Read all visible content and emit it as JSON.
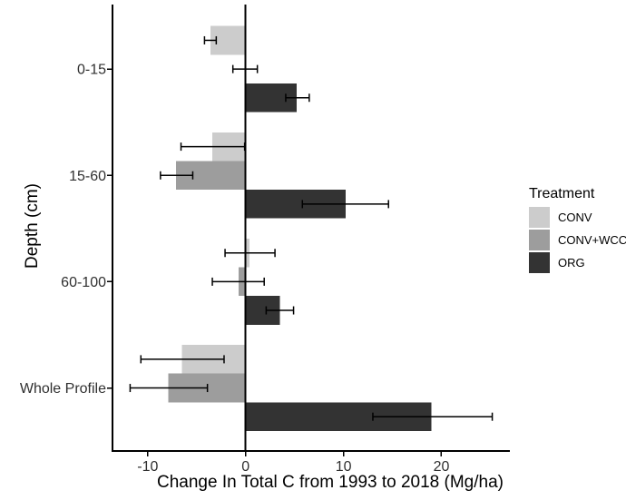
{
  "chart_data": {
    "type": "bar",
    "orientation": "horizontal",
    "title": "",
    "xlabel": "Change In Total C from 1993 to 2018 (Mg/ha)",
    "ylabel": "Depth (cm)",
    "categories": [
      "0-15",
      "15-60",
      "60-100",
      "Whole Profile"
    ],
    "series": [
      {
        "name": "CONV",
        "color": "#cccccc",
        "values": [
          -3.6,
          -3.4,
          0.4,
          -6.5
        ],
        "ci_low": [
          -4.2,
          -6.6,
          -2.1,
          -10.7
        ],
        "ci_high": [
          -3.0,
          -0.1,
          3.0,
          -2.2
        ]
      },
      {
        "name": "CONV+WCC",
        "color": "#9d9d9d",
        "values": [
          0.0,
          -7.1,
          -0.7,
          -7.9
        ],
        "ci_low": [
          -1.3,
          -8.7,
          -3.4,
          -11.8
        ],
        "ci_high": [
          1.2,
          -5.4,
          1.9,
          -3.9
        ]
      },
      {
        "name": "ORG",
        "color": "#333333",
        "values": [
          5.2,
          10.2,
          3.5,
          19.0
        ],
        "ci_low": [
          4.1,
          5.8,
          2.1,
          13.0
        ],
        "ci_high": [
          6.5,
          14.6,
          4.9,
          25.2
        ]
      }
    ],
    "x_ticks": [
      -10,
      0,
      10,
      20
    ],
    "xlim": [
      -13.6,
      27.0
    ],
    "legend_title": "Treatment",
    "legend_position": "right",
    "grid": false,
    "error_bars": true,
    "zero_reference_line": true,
    "axis_text_color": "#303030",
    "axis_line_color": "#000000"
  }
}
